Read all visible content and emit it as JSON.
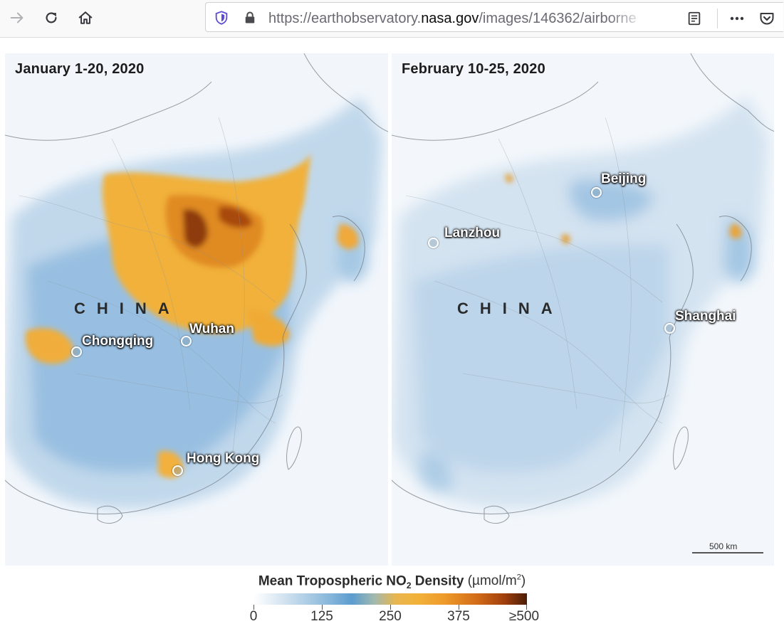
{
  "browser": {
    "url_prefix": "https://earthobservatory.",
    "url_domain": "nasa.gov",
    "url_suffix": "/images/146362/airborne",
    "icons": {
      "back": "arrow-right-icon",
      "reload": "reload-icon",
      "home": "home-icon",
      "tracking": "shield-icon",
      "lock": "lock-icon",
      "reader": "reader-view-icon",
      "menu": "more-icon",
      "pocket": "pocket-icon"
    }
  },
  "maps": {
    "left": {
      "date": "January 1-20, 2020",
      "country": "CHINA",
      "cities": [
        "Chongqing",
        "Wuhan",
        "Hong Kong"
      ]
    },
    "right": {
      "date": "February 10-25, 2020",
      "country": "CHINA",
      "cities": [
        "Beijing",
        "Lanzhou",
        "Shanghai"
      ],
      "scale": "500 km"
    }
  },
  "legend": {
    "title_part1": "Mean Tropospheric NO",
    "title_sub": "2",
    "title_part2": " Density ",
    "units_part1": "(µmol/m",
    "units_sup": "2",
    "units_part2": ")",
    "ticks": [
      "0",
      "125",
      "250",
      "375",
      "≥500"
    ],
    "colors": [
      "#ffffff",
      "#5b9ccf",
      "#f2b23a",
      "#d16a18",
      "#4a1d07"
    ]
  }
}
